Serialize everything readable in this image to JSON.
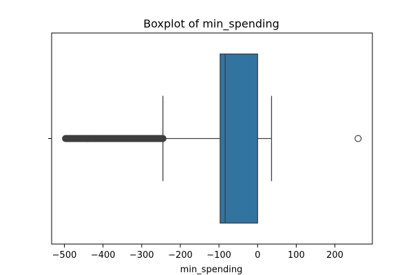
{
  "chart_data": {
    "type": "box",
    "title": "Boxplot of min_spending",
    "xlabel": "min_spending",
    "ylabel": "",
    "xlim": [
      -533,
      297
    ],
    "xticks": [
      -500,
      -400,
      -300,
      -200,
      -100,
      0,
      100,
      200
    ],
    "xtick_labels": [
      "−500",
      "−400",
      "−300",
      "−200",
      "−100",
      "0",
      "100",
      "200"
    ],
    "orientation": "horizontal",
    "box": {
      "q1": -97,
      "median": -84,
      "q3": 0,
      "whisker_low": -245,
      "whisker_high": 36
    },
    "outliers_dense_range": [
      -497,
      -245
    ],
    "outliers_isolated": [
      260
    ],
    "colors": {
      "box_fill": "#3274a1",
      "line": "#3f3f3f",
      "marker_edge": "#3f3f3f"
    },
    "grid": false
  }
}
